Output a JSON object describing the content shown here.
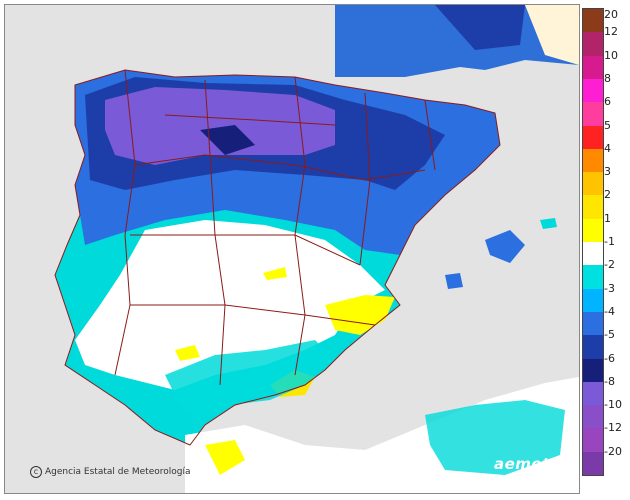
{
  "map": {
    "credit": "Agencia Estatal de Meteorología",
    "watermark": "aemet",
    "colors": {
      "sea": "#e3e3e3",
      "neutral": "#ffffff",
      "border_lines": "#8b1a1a"
    }
  },
  "legend": {
    "labels": [
      "20",
      "12",
      "10",
      "8",
      "6",
      "5",
      "4",
      "3",
      "2",
      "1",
      "-1",
      "-2",
      "-3",
      "-4",
      "-5",
      "-6",
      "-8",
      "-10",
      "-12",
      "-20"
    ],
    "colors": [
      "#8b3a1a",
      "#b2246a",
      "#d61b8f",
      "#ff1fd2",
      "#ff3d9e",
      "#ff2222",
      "#ff8a00",
      "#ffc300",
      "#ffe600",
      "#ffff00",
      "#ffffff",
      "#00e0e0",
      "#00b4ff",
      "#2b6fe0",
      "#1d3ea8",
      "#16207a",
      "#7a5ad6",
      "#8a4fc8",
      "#9a45c0",
      "#7a3aa8"
    ]
  }
}
